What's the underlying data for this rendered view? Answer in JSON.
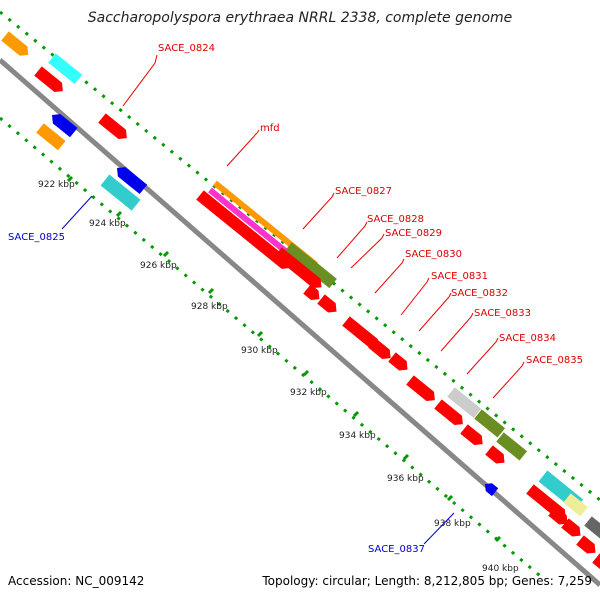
{
  "title": "Saccharopolyspora erythraea NRRL 2338, complete genome",
  "footer": {
    "accession": "Accession: NC_009142",
    "summary": "Topology: circular; Length: 8,212,805 bp; Genes: 7,259"
  },
  "colors": {
    "red": "#ff0000",
    "orange": "#ff9900",
    "magenta": "#ff33cc",
    "olive": "#6b8e23",
    "cyan": "#33cccc",
    "blue": "#0000ee",
    "light_gray": "#cccccc",
    "dark_gray": "#666666",
    "khaki": "#eeee99",
    "backbone": "#888888",
    "tick_green": "#009900",
    "label_red": "#dd0000",
    "label_blue": "#0000cc"
  },
  "scale_ticks": [
    "922 kbp",
    "924 kbp",
    "926 kbp",
    "928 kbp",
    "930 kbp",
    "932 kbp",
    "934 kbp",
    "936 kbp",
    "938 kbp",
    "940 kbp"
  ],
  "gene_labels_forward": [
    "SACE_0824",
    "mfd",
    "SACE_0827",
    "SACE_0828",
    "SACE_0829",
    "SACE_0830",
    "SACE_0831",
    "SACE_0832",
    "SACE_0833",
    "SACE_0834",
    "SACE_0835"
  ],
  "gene_labels_reverse": [
    "SACE_0825",
    "SACE_0837"
  ]
}
